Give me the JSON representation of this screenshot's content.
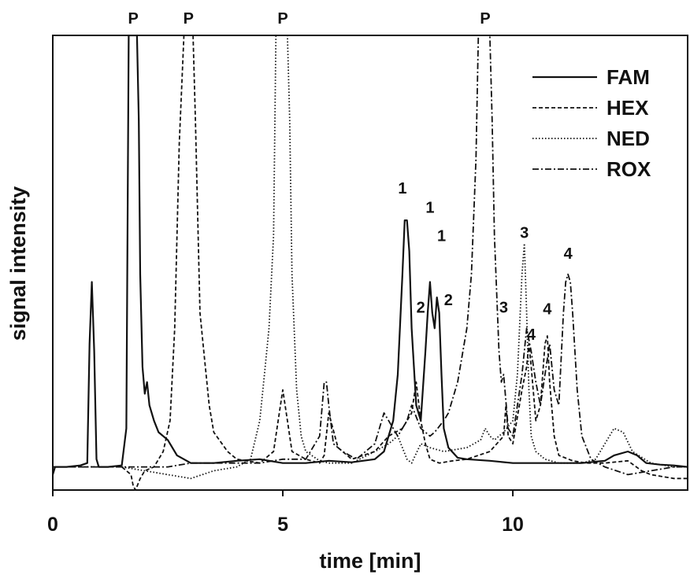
{
  "chart_data": {
    "type": "line",
    "title": "",
    "xlabel": "time [min]",
    "ylabel": "signal intensity",
    "xlim": [
      0,
      13.8
    ],
    "ylim": [
      -30,
      560
    ],
    "grid": false,
    "legend_position": "top-right",
    "x_ticks": [
      {
        "value": 0,
        "label": "0"
      },
      {
        "value": 5,
        "label": "5"
      },
      {
        "value": 10,
        "label": "10"
      }
    ],
    "series": [
      {
        "name": "FAM",
        "dash": "",
        "width": 2.2,
        "x": [
          0,
          0.05,
          0.3,
          0.6,
          0.75,
          0.8,
          0.85,
          0.9,
          0.95,
          1.0,
          1.2,
          1.5,
          1.6,
          1.65,
          1.7,
          1.73,
          1.75,
          1.83,
          1.87,
          1.9,
          1.95,
          2.0,
          2.05,
          2.1,
          2.2,
          2.3,
          2.5,
          2.7,
          3.0,
          3.5,
          4.0,
          4.5,
          5.0,
          5.5,
          6.0,
          6.5,
          7.0,
          7.2,
          7.4,
          7.5,
          7.6,
          7.65,
          7.7,
          7.75,
          7.8,
          7.9,
          8.0,
          8.1,
          8.15,
          8.2,
          8.25,
          8.3,
          8.35,
          8.4,
          8.45,
          8.5,
          8.6,
          8.8,
          9.0,
          9.5,
          10.0,
          10.5,
          11.0,
          11.5,
          12.0,
          12.2,
          12.5,
          12.7,
          12.9,
          13.2,
          13.5,
          13.8
        ],
        "y": [
          -10,
          0,
          0,
          2,
          5,
          160,
          240,
          150,
          10,
          0,
          0,
          2,
          50,
          560,
          560,
          560,
          560,
          560,
          450,
          250,
          130,
          95,
          110,
          80,
          60,
          45,
          35,
          15,
          5,
          5,
          8,
          10,
          5,
          5,
          8,
          6,
          10,
          20,
          60,
          120,
          250,
          320,
          320,
          280,
          180,
          80,
          60,
          150,
          200,
          240,
          200,
          180,
          220,
          200,
          120,
          50,
          25,
          12,
          10,
          8,
          5,
          5,
          5,
          5,
          8,
          15,
          20,
          15,
          5,
          3,
          2,
          0
        ]
      },
      {
        "name": "HEX",
        "dash": "5,3",
        "width": 1.8,
        "x": [
          0,
          0.1,
          0.5,
          1.0,
          1.5,
          1.7,
          1.75,
          1.8,
          1.9,
          2.0,
          2.2,
          2.4,
          2.55,
          2.65,
          2.75,
          2.85,
          2.9,
          2.95,
          3.0,
          3.05,
          3.1,
          3.2,
          3.3,
          3.4,
          3.5,
          3.8,
          4.0,
          4.5,
          4.8,
          5.0,
          5.1,
          5.2,
          5.5,
          5.8,
          5.9,
          6.0,
          6.2,
          6.5,
          7.0,
          7.3,
          7.6,
          7.8,
          7.9,
          8.0,
          8.1,
          8.2,
          8.4,
          8.7,
          9.0,
          9.5,
          9.8,
          9.85,
          9.9,
          10.0,
          10.2,
          10.3,
          10.35,
          10.4,
          10.5,
          10.6,
          10.7,
          10.75,
          10.8,
          10.9,
          11.0,
          11.3,
          11.6,
          12.0,
          12.5,
          12.8,
          13.0,
          13.5,
          13.8
        ],
        "y": [
          0,
          0,
          0,
          0,
          0,
          -10,
          -25,
          -30,
          -15,
          -5,
          0,
          20,
          60,
          180,
          420,
          560,
          560,
          560,
          560,
          560,
          450,
          200,
          140,
          80,
          45,
          20,
          10,
          5,
          20,
          100,
          60,
          20,
          10,
          5,
          15,
          70,
          25,
          10,
          20,
          40,
          50,
          70,
          110,
          60,
          30,
          10,
          5,
          8,
          10,
          20,
          40,
          80,
          40,
          30,
          100,
          130,
          160,
          130,
          60,
          80,
          160,
          170,
          110,
          40,
          15,
          8,
          5,
          5,
          8,
          -5,
          -10,
          -15,
          -15
        ]
      },
      {
        "name": "NED",
        "dash": "1.5,2.5",
        "width": 1.8,
        "x": [
          0,
          0.5,
          1.0,
          1.5,
          2.0,
          2.5,
          3.0,
          3.5,
          4.0,
          4.3,
          4.5,
          4.6,
          4.7,
          4.8,
          4.85,
          4.9,
          4.95,
          5.0,
          5.05,
          5.1,
          5.15,
          5.2,
          5.3,
          5.4,
          5.5,
          5.8,
          6.0,
          6.5,
          7.0,
          7.3,
          7.5,
          7.7,
          7.8,
          8.0,
          8.2,
          8.5,
          9.0,
          9.3,
          9.4,
          9.5,
          9.6,
          9.8,
          10.0,
          10.1,
          10.2,
          10.25,
          10.3,
          10.35,
          10.4,
          10.5,
          10.7,
          11.0,
          11.5,
          11.8,
          12.0,
          12.2,
          12.4,
          12.6,
          13.0,
          13.5,
          13.8
        ],
        "y": [
          0,
          0,
          0,
          0,
          -5,
          -10,
          -15,
          -5,
          0,
          10,
          60,
          120,
          180,
          300,
          560,
          560,
          560,
          560,
          560,
          560,
          450,
          250,
          100,
          40,
          20,
          8,
          5,
          5,
          20,
          30,
          40,
          10,
          5,
          30,
          25,
          20,
          25,
          35,
          50,
          40,
          35,
          45,
          60,
          120,
          250,
          290,
          200,
          100,
          40,
          20,
          10,
          5,
          5,
          10,
          30,
          50,
          45,
          20,
          5,
          0,
          0
        ]
      },
      {
        "name": "ROX",
        "dash": "8,3,2,3",
        "width": 1.8,
        "x": [
          0,
          0.5,
          1.0,
          1.5,
          2.0,
          2.5,
          3.0,
          3.5,
          4.0,
          4.5,
          5.0,
          5.5,
          5.8,
          5.9,
          5.95,
          6.0,
          6.1,
          6.3,
          6.6,
          7.0,
          7.2,
          7.3,
          7.5,
          7.7,
          7.8,
          8.0,
          8.2,
          8.3,
          8.5,
          8.6,
          8.8,
          9.0,
          9.1,
          9.2,
          9.25,
          9.3,
          9.35,
          9.4,
          9.45,
          9.5,
          9.55,
          9.6,
          9.7,
          9.75,
          9.8,
          9.9,
          10.0,
          10.2,
          10.3,
          10.4,
          10.45,
          10.5,
          10.6,
          10.7,
          10.8,
          10.9,
          11.0,
          11.1,
          11.15,
          11.2,
          11.25,
          11.3,
          11.4,
          11.5,
          11.7,
          12.0,
          12.5,
          13.0,
          13.5,
          13.8
        ],
        "y": [
          0,
          0,
          0,
          0,
          0,
          0,
          5,
          5,
          5,
          5,
          10,
          10,
          40,
          110,
          110,
          80,
          30,
          20,
          10,
          30,
          70,
          60,
          40,
          60,
          80,
          50,
          40,
          45,
          60,
          70,
          110,
          180,
          250,
          400,
          560,
          560,
          560,
          560,
          560,
          560,
          450,
          300,
          150,
          110,
          120,
          50,
          40,
          120,
          180,
          150,
          130,
          110,
          80,
          120,
          160,
          100,
          80,
          200,
          240,
          250,
          240,
          200,
          100,
          40,
          10,
          0,
          -10,
          -5,
          0,
          0
        ]
      }
    ],
    "top_annotations": [
      {
        "text": "P",
        "x": 1.75
      },
      {
        "text": "P",
        "x": 2.95
      },
      {
        "text": "P",
        "x": 5.0
      },
      {
        "text": "P",
        "x": 9.4
      }
    ],
    "peak_annotations": [
      {
        "text": "1",
        "x": 7.6,
        "y": 355
      },
      {
        "text": "1",
        "x": 8.2,
        "y": 330
      },
      {
        "text": "1",
        "x": 8.45,
        "y": 293
      },
      {
        "text": "2",
        "x": 8.0,
        "y": 200
      },
      {
        "text": "2",
        "x": 8.6,
        "y": 210
      },
      {
        "text": "3",
        "x": 10.25,
        "y": 297
      },
      {
        "text": "3",
        "x": 9.8,
        "y": 200
      },
      {
        "text": "4",
        "x": 10.4,
        "y": 165
      },
      {
        "text": "4",
        "x": 10.75,
        "y": 198
      },
      {
        "text": "4",
        "x": 11.2,
        "y": 270
      }
    ]
  }
}
